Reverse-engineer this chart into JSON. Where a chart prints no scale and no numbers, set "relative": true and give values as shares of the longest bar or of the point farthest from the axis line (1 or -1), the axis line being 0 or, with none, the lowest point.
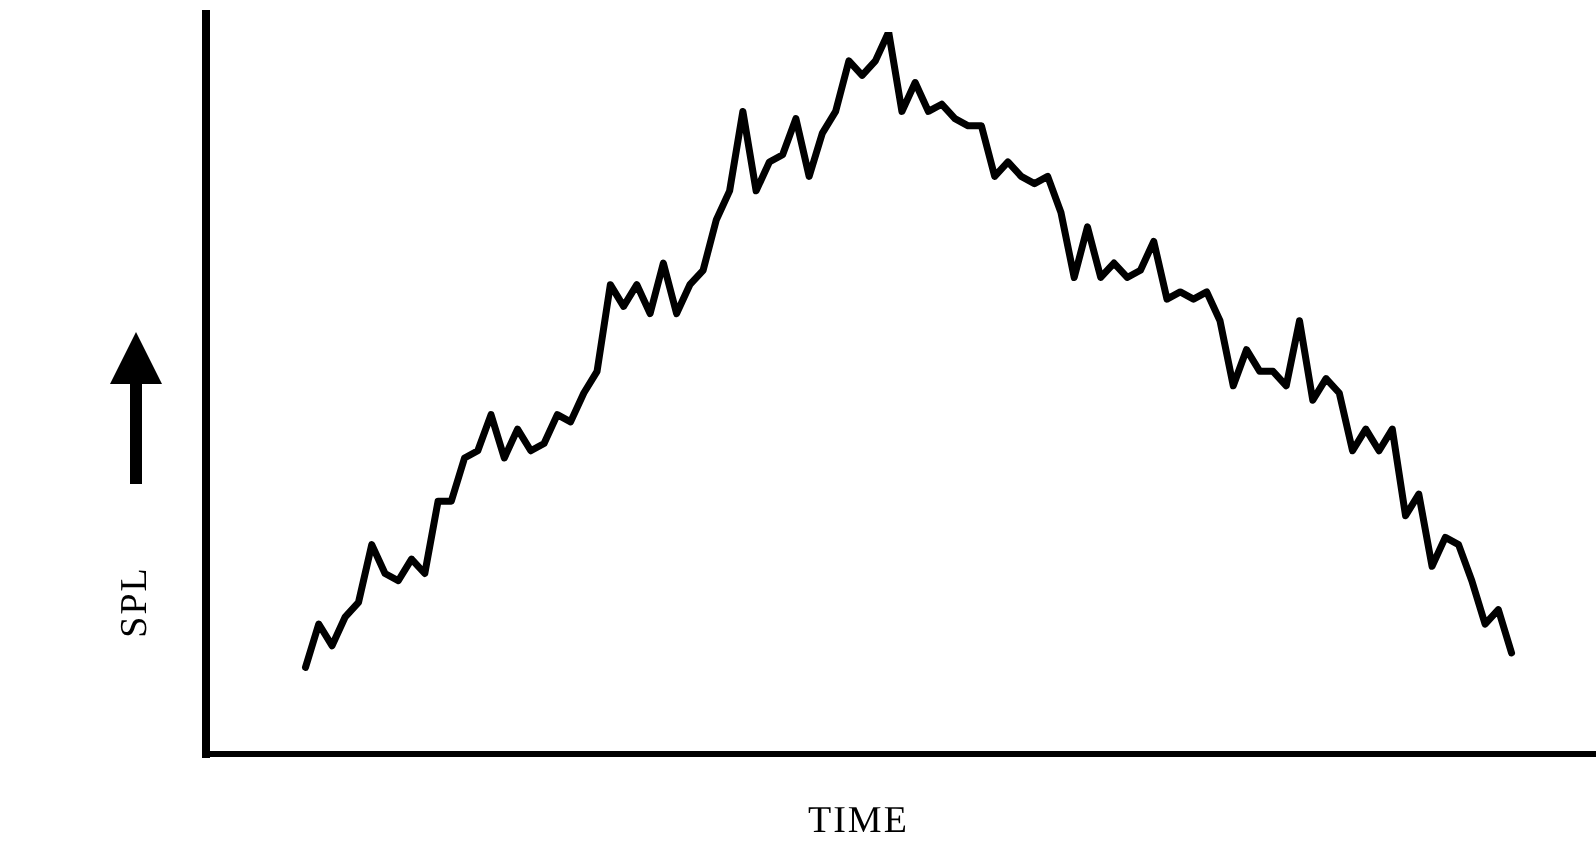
{
  "chart_data": {
    "type": "line",
    "relative": true,
    "xlabel": "TIME",
    "ylabel": "SPL",
    "color": "#000000",
    "marker": "none",
    "categories": [
      null,
      null,
      null,
      null,
      null,
      null,
      null,
      null,
      null,
      null,
      null,
      null,
      null,
      null,
      null,
      null,
      null,
      null,
      null,
      null,
      null,
      null,
      null,
      null,
      null,
      null,
      null,
      null,
      null,
      null,
      null,
      null,
      null,
      null,
      null,
      null,
      null,
      null,
      null,
      null,
      null,
      null,
      null,
      null,
      null,
      null,
      null,
      null,
      null,
      null,
      null,
      null,
      null,
      null,
      null,
      null,
      null,
      null,
      null,
      null,
      null,
      null,
      null,
      null,
      null,
      null,
      null,
      null,
      null,
      null,
      null,
      null,
      null,
      null,
      null,
      null,
      null,
      null,
      null,
      null,
      null,
      null,
      null,
      null,
      null,
      null,
      null,
      null,
      null,
      null,
      null,
      null
    ],
    "values": [
      0.12,
      0.18,
      0.15,
      0.19,
      0.21,
      0.29,
      0.25,
      0.24,
      0.27,
      0.25,
      0.35,
      0.35,
      0.41,
      0.42,
      0.47,
      0.41,
      0.45,
      0.42,
      0.43,
      0.47,
      0.46,
      0.5,
      0.53,
      0.65,
      0.62,
      0.65,
      0.61,
      0.68,
      0.61,
      0.65,
      0.67,
      0.74,
      0.78,
      0.89,
      0.78,
      0.82,
      0.83,
      0.88,
      0.8,
      0.86,
      0.89,
      0.96,
      0.94,
      0.96,
      1,
      0.89,
      0.93,
      0.89,
      0.9,
      0.88,
      0.87,
      0.87,
      0.8,
      0.82,
      0.8,
      0.79,
      0.8,
      0.75,
      0.66,
      0.73,
      0.66,
      0.68,
      0.66,
      0.67,
      0.71,
      0.63,
      0.64,
      0.63,
      0.64,
      0.6,
      0.51,
      0.56,
      0.53,
      0.53,
      0.51,
      0.6,
      0.49,
      0.52,
      0.5,
      0.42,
      0.45,
      0.42,
      0.45,
      0.33,
      0.36,
      0.26,
      0.3,
      0.29,
      0.24,
      0.18,
      0.2,
      0.14
    ]
  }
}
